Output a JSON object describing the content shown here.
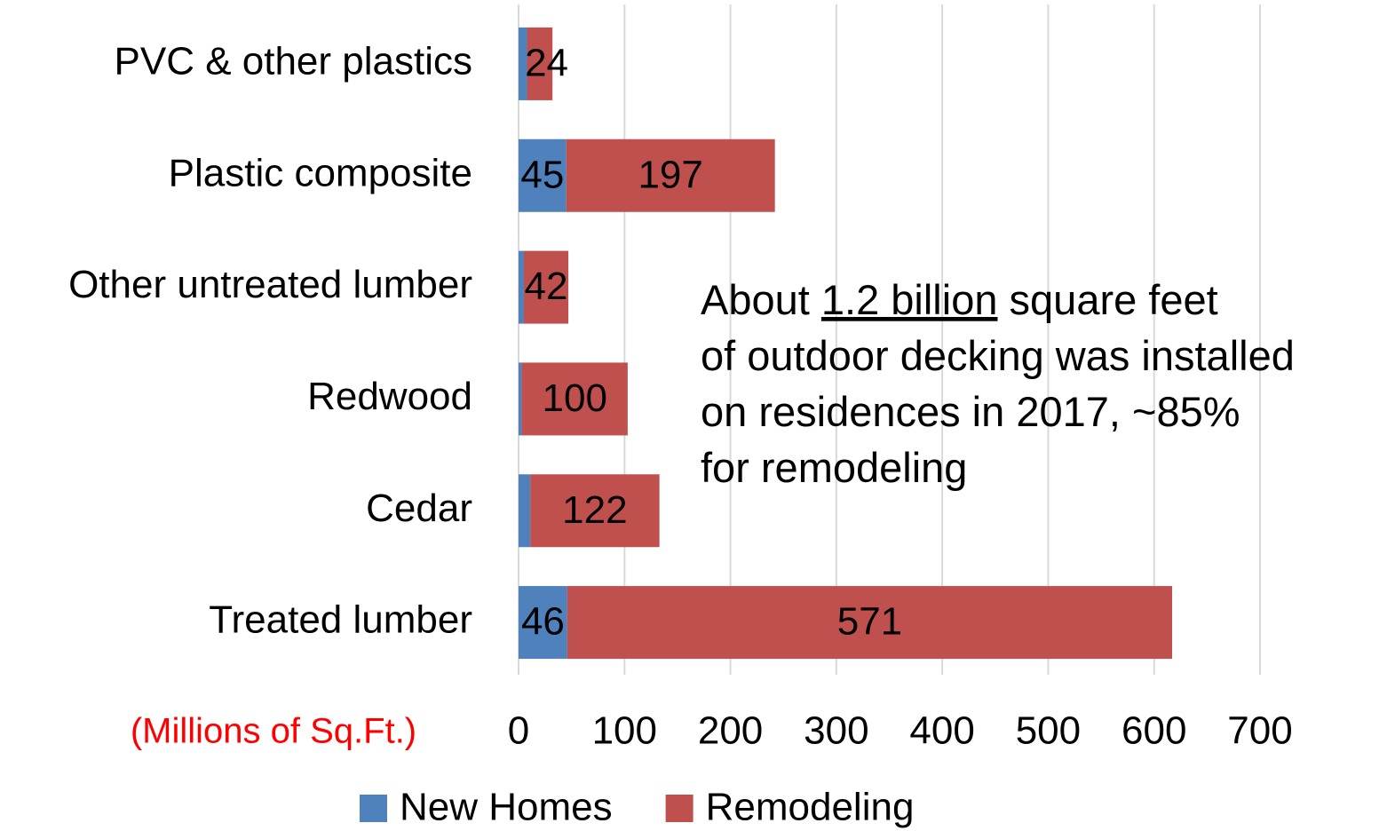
{
  "chart_data": {
    "type": "stacked_barh",
    "categories": [
      "PVC & other plastics",
      "Plastic composite",
      "Other untreated lumber",
      "Redwood",
      "Cedar",
      "Treated lumber"
    ],
    "series": [
      {
        "name": "New Homes",
        "color": "#4f81bd",
        "values": [
          8,
          45,
          5,
          3,
          11,
          46
        ],
        "value_labels": [
          null,
          "45",
          null,
          null,
          null,
          "46"
        ]
      },
      {
        "name": "Remodeling",
        "color": "#c0504d",
        "values": [
          24,
          197,
          42,
          100,
          122,
          571
        ],
        "value_labels": [
          "24",
          "197",
          "42",
          "100",
          "122",
          "571"
        ]
      }
    ],
    "xlim": [
      0,
      700
    ],
    "xticks": [
      0,
      100,
      200,
      300,
      400,
      500,
      600,
      700
    ],
    "grid": true,
    "x_axis_label": "(Millions of Sq.Ft.)",
    "legend": "bottom",
    "annotation": [
      [
        {
          "text": "About "
        },
        {
          "text": "1.2 billion",
          "underline": true
        },
        {
          "text": " square feet"
        }
      ],
      [
        {
          "text": "of outdoor decking was installed"
        }
      ],
      [
        {
          "text": "on residences in 2017, ~85%"
        }
      ],
      [
        {
          "text": "for remodeling"
        }
      ]
    ]
  }
}
